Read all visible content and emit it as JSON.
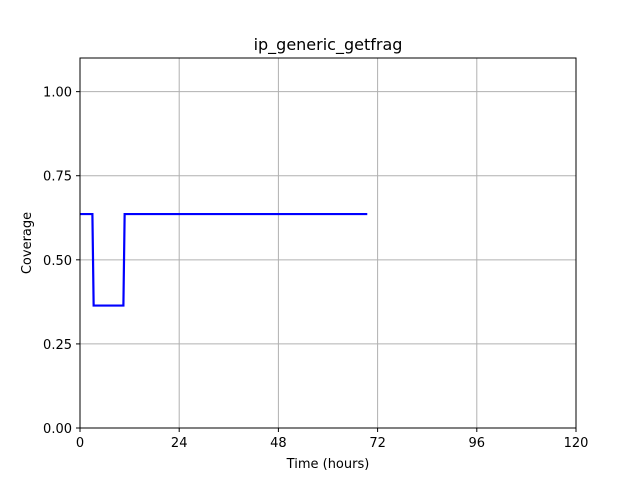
{
  "chart_data": {
    "type": "line",
    "title": "ip_generic_getfrag",
    "xlabel": "Time (hours)",
    "ylabel": "Coverage",
    "xlim": [
      0,
      120
    ],
    "ylim": [
      0,
      1.1
    ],
    "xticks": [
      0,
      24,
      48,
      72,
      96,
      120
    ],
    "xtick_labels": [
      "0",
      "24",
      "48",
      "72",
      "96",
      "120"
    ],
    "yticks": [
      0,
      0.25,
      0.5,
      0.75,
      1.0
    ],
    "ytick_labels": [
      "0.00",
      "0.25",
      "0.50",
      "0.75",
      "1.00"
    ],
    "grid": true,
    "series": [
      {
        "color": "#0000ff",
        "x": [
          0,
          3,
          3.3,
          10.5,
          10.8,
          69.5
        ],
        "y": [
          0.636,
          0.636,
          0.364,
          0.364,
          0.636,
          0.636
        ]
      }
    ]
  }
}
